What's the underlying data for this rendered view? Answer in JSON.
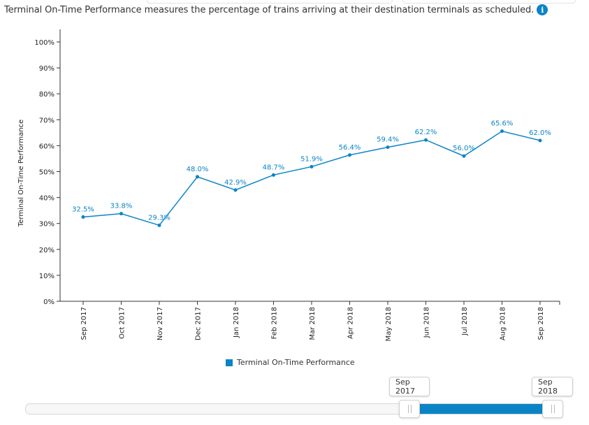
{
  "description": {
    "text": "Terminal On-Time Performance measures the percentage of trains arriving at their destination terminals as scheduled.",
    "info_icon": "info-icon",
    "info_glyph": "i"
  },
  "colors": {
    "series": "#0b84c6",
    "axis": "#333333",
    "label": "#0b84c6"
  },
  "chart_data": {
    "type": "line",
    "title": "",
    "xlabel": "",
    "ylabel": "Terminal On-Time Performance",
    "ylim": [
      0,
      100
    ],
    "yticks": [
      0,
      10,
      20,
      30,
      40,
      50,
      60,
      70,
      80,
      90,
      100
    ],
    "ytick_labels": [
      "0%",
      "10%",
      "20%",
      "30%",
      "40%",
      "50%",
      "60%",
      "70%",
      "80%",
      "90%",
      "100%"
    ],
    "categories": [
      "Sep 2017",
      "Oct 2017",
      "Nov 2017",
      "Dec 2017",
      "Jan 2018",
      "Feb 2018",
      "Mar 2018",
      "Apr 2018",
      "May 2018",
      "Jun 2018",
      "Jul 2018",
      "Aug 2018",
      "Sep 2018"
    ],
    "series": [
      {
        "name": "Terminal On-Time Performance",
        "values": [
          32.5,
          33.8,
          29.3,
          48.0,
          42.9,
          48.7,
          51.9,
          56.4,
          59.4,
          62.2,
          56.0,
          65.6,
          62.0
        ],
        "data_labels": [
          "32.5%",
          "33.8%",
          "29.3%",
          "48.0%",
          "42.9%",
          "48.7%",
          "51.9%",
          "56.4%",
          "59.4%",
          "62.2%",
          "56.0%",
          "65.6%",
          "62.0%"
        ]
      }
    ],
    "legend": "bottom-center",
    "grid": false
  },
  "legend": {
    "label": "Terminal On-Time Performance"
  },
  "range_selector": {
    "start_label": "Sep 2017",
    "end_label": "Sep 2018"
  }
}
